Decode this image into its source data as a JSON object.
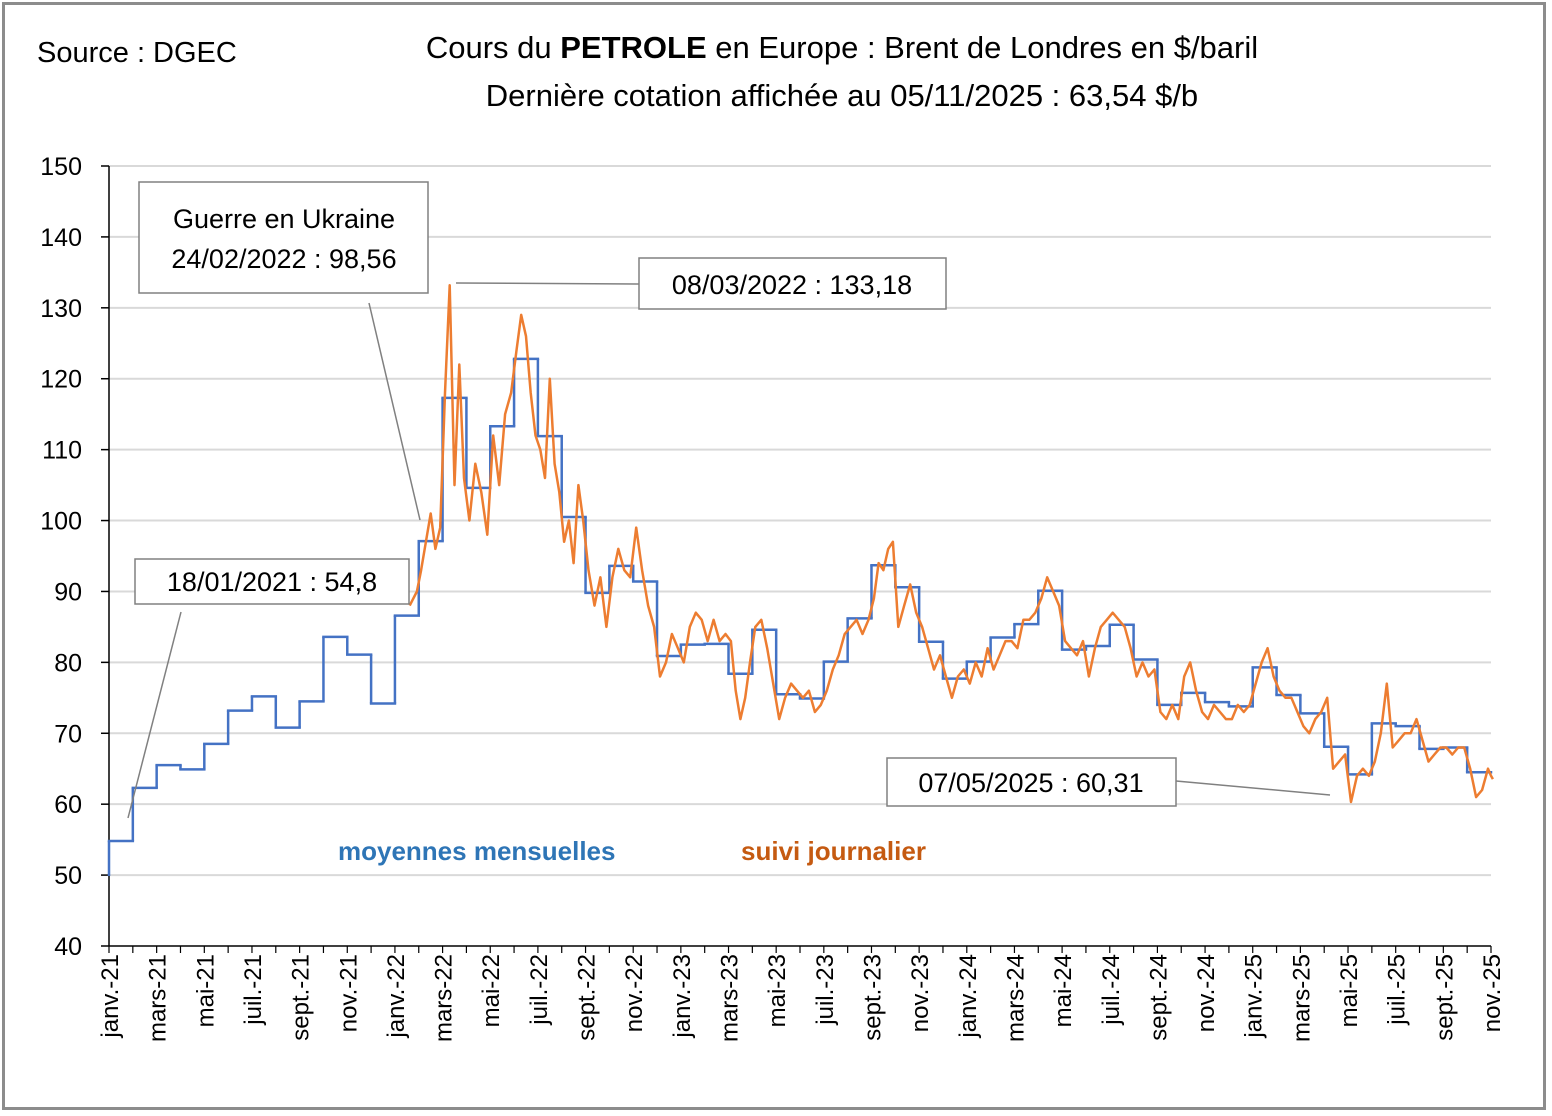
{
  "source": "Source : DGEC",
  "title": {
    "prefix": "Cours du ",
    "bold": "PETROLE",
    "suffix": " en Europe : Brent de Londres en $/baril",
    "line2": "Dernière cotation affichée au 05/11/2025 : 63,54 $/b"
  },
  "colors": {
    "monthly": "#4472c4",
    "daily": "#ed7d31",
    "monthly_label": "#2e75b6",
    "daily_label": "#c55a11",
    "grid": "#d9d9d9"
  },
  "chart_data": {
    "type": "line",
    "title": "Cours du PETROLE en Europe : Brent de Londres en $/baril",
    "xlabel": "",
    "ylabel": "$/baril",
    "ylim": [
      40,
      150
    ],
    "yticks": [
      40,
      50,
      60,
      70,
      80,
      90,
      100,
      110,
      120,
      130,
      140,
      150
    ],
    "grid": true,
    "xticks": [
      "janv.-21",
      "mars-21",
      "mai-21",
      "juil.-21",
      "sept.-21",
      "nov.-21",
      "janv.-22",
      "mars-22",
      "mai-22",
      "juil.-22",
      "sept.-22",
      "nov.-22",
      "janv.-23",
      "mars-23",
      "mai-23",
      "juil.-23",
      "sept.-23",
      "nov.-23",
      "janv.-24",
      "mars-24",
      "mai-24",
      "juil.-24",
      "sept.-24",
      "nov.-24",
      "janv.-25",
      "mars-25",
      "mai-25",
      "juil.-25",
      "sept.-25",
      "nov.-25"
    ],
    "legend": [
      {
        "name": "moyennes mensuelles",
        "placement": "bottom-left"
      },
      {
        "name": "suivi journalier",
        "placement": "bottom-center"
      }
    ],
    "series": [
      {
        "name": "moyennes mensuelles",
        "start_month": "2021-01",
        "values": [
          54.8,
          62.3,
          65.5,
          64.9,
          68.5,
          73.2,
          75.2,
          70.8,
          74.5,
          83.6,
          81.1,
          74.2,
          86.6,
          97.1,
          117.3,
          104.6,
          113.3,
          122.8,
          111.9,
          100.5,
          89.8,
          93.6,
          91.4,
          80.9,
          82.5,
          82.6,
          78.4,
          84.6,
          75.5,
          74.9,
          80.1,
          86.2,
          93.7,
          90.6,
          82.9,
          77.7,
          80.1,
          83.5,
          85.4,
          90.1,
          81.8,
          82.3,
          85.3,
          80.4,
          74.0,
          75.7,
          74.4,
          73.8,
          79.3,
          75.4,
          72.8,
          68.1,
          64.2,
          71.4,
          71.0,
          67.8,
          68.0,
          64.5
        ]
      },
      {
        "name": "suivi journalier",
        "start_month": "2022-01",
        "values_by_month": [
          [
            88,
            90
          ],
          [
            93,
            97,
            101,
            96,
            99
          ],
          [
            118,
            133.18,
            105,
            122,
            106
          ],
          [
            100,
            108,
            104,
            98
          ],
          [
            112,
            105,
            115,
            118
          ],
          [
            124,
            129,
            126,
            118,
            112
          ],
          [
            110,
            106,
            120,
            108,
            104
          ],
          [
            97,
            100,
            94,
            105,
            100
          ],
          [
            93,
            88,
            92,
            85
          ],
          [
            92,
            96,
            93,
            92
          ],
          [
            99,
            93,
            88,
            85
          ],
          [
            78,
            80,
            84,
            82
          ],
          [
            80,
            85,
            87,
            86
          ],
          [
            83,
            86,
            83,
            84
          ],
          [
            83,
            76,
            72,
            75,
            80
          ],
          [
            85,
            86,
            82,
            77
          ],
          [
            72,
            75,
            77,
            76
          ],
          [
            75,
            76,
            73,
            74
          ],
          [
            76,
            79,
            81,
            84
          ],
          [
            85,
            86,
            84,
            86
          ],
          [
            89,
            94,
            93,
            96,
            97
          ],
          [
            85,
            88,
            91,
            87
          ],
          [
            85,
            82,
            79,
            81
          ],
          [
            78,
            75,
            78,
            79
          ],
          [
            77,
            80,
            78,
            82
          ],
          [
            79,
            81,
            83,
            83
          ],
          [
            82,
            86,
            86,
            87
          ],
          [
            89,
            92,
            90,
            88
          ],
          [
            83,
            82,
            81,
            83
          ],
          [
            78,
            82,
            85,
            86
          ],
          [
            87,
            86,
            85,
            82
          ],
          [
            78,
            80,
            78,
            79
          ],
          [
            73,
            72,
            74,
            72
          ],
          [
            78,
            80,
            76,
            73
          ],
          [
            72,
            74,
            73,
            72
          ],
          [
            72,
            74,
            73,
            74
          ],
          [
            77,
            80,
            82,
            78
          ],
          [
            76,
            75,
            75,
            73
          ],
          [
            71,
            70,
            72,
            73
          ],
          [
            75,
            65,
            66,
            67
          ],
          [
            60.31,
            64,
            65,
            64
          ],
          [
            66,
            70,
            77,
            68
          ],
          [
            69,
            70,
            70,
            72
          ],
          [
            69,
            66,
            67,
            68
          ],
          [
            68,
            67,
            68,
            68
          ],
          [
            65,
            61,
            62,
            65
          ],
          [
            64,
            63.54
          ]
        ]
      }
    ],
    "annotations": [
      {
        "line1": "Guerre en Ukraine",
        "line2": "24/02/2022 : 98,56"
      },
      {
        "text": "08/03/2022 : 133,18"
      },
      {
        "text": "18/01/2021 : 54,8"
      },
      {
        "text": "07/05/2025 : 60,31"
      }
    ]
  }
}
